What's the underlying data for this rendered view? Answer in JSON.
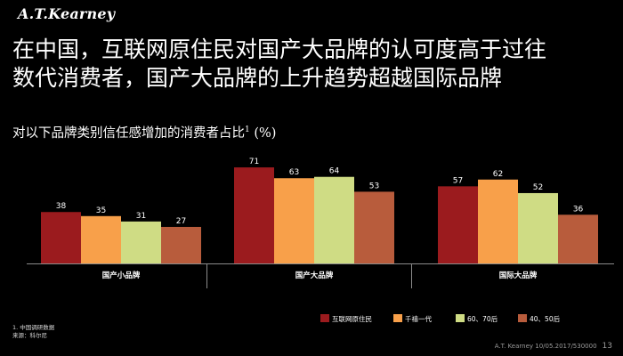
{
  "logo": "A.T.Kearney",
  "headline": {
    "line1": "在中国，互联网原住民对国产大品牌的认可度高于过往",
    "line2": "数代消费者，国产大品牌的上升趋势超越国际品牌"
  },
  "subtitle": "对以下品牌类别信任感增加的消费者占比",
  "subtitle_sup": "1",
  "subtitle_unit": " (%)",
  "footnotes": [
    "1. 中国调研数据",
    "来源：科尔尼"
  ],
  "footer": {
    "text": "A.T. Kearney 10/05.2017/530000",
    "page": "13"
  },
  "colors": {
    "series": [
      "#9b1b1e",
      "#f8a04a",
      "#cfdc84",
      "#b85c3c"
    ],
    "divider": "#8c8c8c",
    "label": "#ffffff"
  },
  "chart_data": {
    "type": "bar",
    "categories": [
      "国产小品牌",
      "国产大品牌",
      "国际大品牌"
    ],
    "series": [
      {
        "name": "互联网原住民",
        "values": [
          38,
          71,
          57
        ]
      },
      {
        "name": "千禧一代",
        "values": [
          35,
          63,
          62
        ]
      },
      {
        "name": "60、70后",
        "values": [
          31,
          64,
          52
        ]
      },
      {
        "name": "40、50后",
        "values": [
          27,
          53,
          36
        ]
      }
    ],
    "ylim": [
      0,
      75
    ],
    "grid": false,
    "legend": "bottom-right"
  }
}
